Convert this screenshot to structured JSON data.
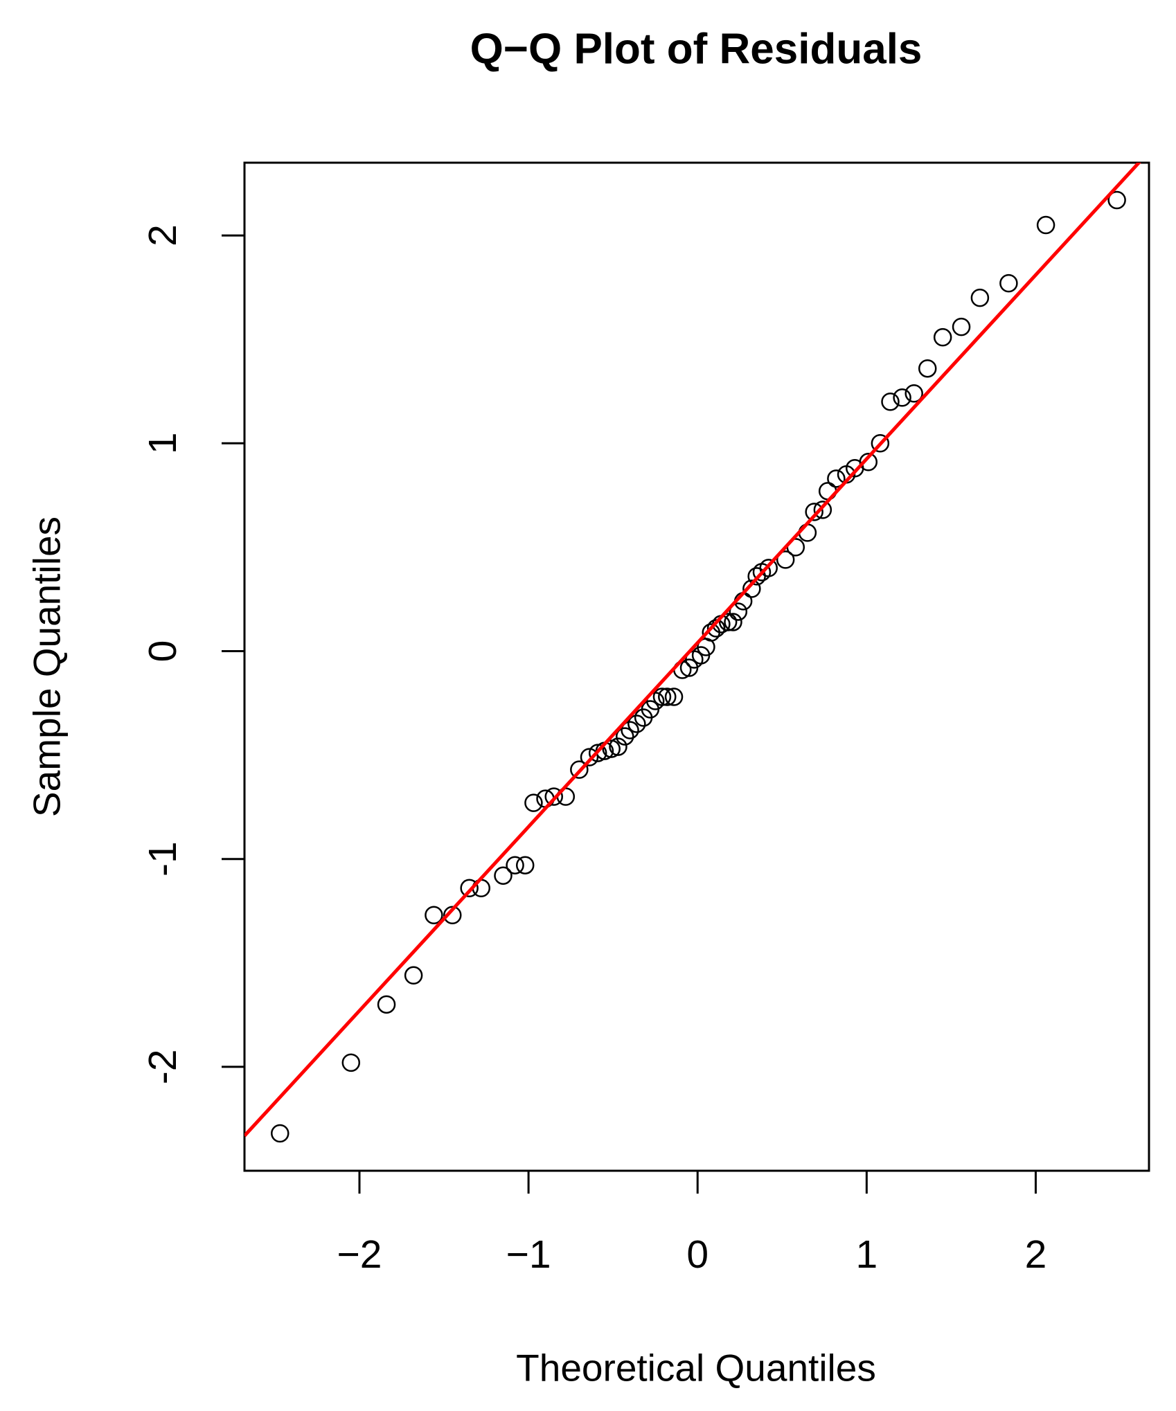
{
  "chart_data": {
    "type": "scatter",
    "title": "Q−Q Plot of Residuals",
    "x_label": "Theoretical Quantiles",
    "y_label": "Sample Quantiles",
    "xlim": [
      -2.68,
      2.67
    ],
    "ylim": [
      -2.5,
      2.35
    ],
    "xticks": [
      {
        "value": -2,
        "label": "−2"
      },
      {
        "value": -1,
        "label": "−1"
      },
      0,
      1,
      2
    ],
    "yticks": [
      -2,
      -1,
      0,
      1,
      2
    ],
    "grid": false,
    "point_color": "#000000",
    "ref_line": {
      "slope": 0.885,
      "intercept": 0.04,
      "color": "#ff0000"
    },
    "x": [
      -2.47,
      -2.05,
      -1.84,
      -1.68,
      -1.56,
      -1.45,
      -1.35,
      -1.28,
      -1.15,
      -1.08,
      -1.02,
      -0.97,
      -0.9,
      -0.85,
      -0.78,
      -0.7,
      -0.64,
      -0.59,
      -0.55,
      -0.51,
      -0.47,
      -0.43,
      -0.4,
      -0.36,
      -0.32,
      -0.28,
      -0.25,
      -0.21,
      -0.18,
      -0.14,
      -0.09,
      -0.05,
      -0.02,
      0.02,
      0.05,
      0.08,
      0.11,
      0.14,
      0.18,
      0.21,
      0.24,
      0.27,
      0.32,
      0.35,
      0.38,
      0.42,
      0.52,
      0.58,
      0.65,
      0.69,
      0.74,
      0.77,
      0.82,
      0.88,
      0.93,
      1.01,
      1.08,
      1.14,
      1.21,
      1.28,
      1.36,
      1.45,
      1.56,
      1.67,
      1.84,
      2.06,
      2.48
    ],
    "values": [
      -2.32,
      -1.98,
      -1.7,
      -1.56,
      -1.27,
      -1.27,
      -1.14,
      -1.14,
      -1.08,
      -1.03,
      -1.03,
      -0.73,
      -0.71,
      -0.7,
      -0.7,
      -0.57,
      -0.51,
      -0.49,
      -0.48,
      -0.47,
      -0.46,
      -0.41,
      -0.38,
      -0.35,
      -0.32,
      -0.28,
      -0.24,
      -0.22,
      -0.22,
      -0.22,
      -0.09,
      -0.08,
      -0.04,
      -0.02,
      0.02,
      0.09,
      0.11,
      0.13,
      0.14,
      0.14,
      0.19,
      0.24,
      0.3,
      0.36,
      0.38,
      0.4,
      0.44,
      0.5,
      0.57,
      0.67,
      0.68,
      0.77,
      0.83,
      0.85,
      0.88,
      0.91,
      1.0,
      1.2,
      1.22,
      1.24,
      1.36,
      1.51,
      1.56,
      1.7,
      1.77,
      2.05,
      2.17
    ]
  }
}
